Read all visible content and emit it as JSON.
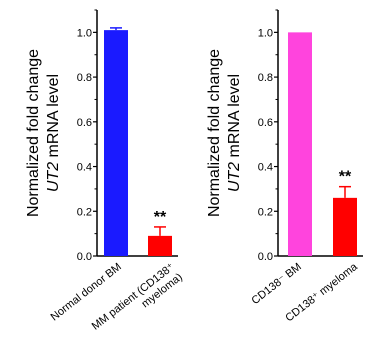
{
  "chart_data": [
    {
      "type": "bar",
      "categories": [
        "Normal donor BM",
        "MM patient (CD138⁺ myeloma)"
      ],
      "category_lines": [
        [
          "Normal donor BM"
        ],
        [
          "MM patient (CD138⁺",
          "myeloma)"
        ]
      ],
      "values": [
        1.01,
        0.09
      ],
      "errors": [
        0.01,
        0.04
      ],
      "colors": [
        "#1a1aff",
        "#ff0000"
      ],
      "significance": [
        "",
        "**"
      ],
      "ylabel_lines": [
        "Normalized fold change",
        "UT2 mRNA level"
      ],
      "ylim": [
        0,
        1.1
      ],
      "yticks": [
        "0.0",
        "0.2",
        "0.4",
        "0.6",
        "0.8",
        "1.0"
      ],
      "ytick_values": [
        0,
        0.2,
        0.4,
        0.6,
        0.8,
        1.0
      ],
      "grid": false
    },
    {
      "type": "bar",
      "categories": [
        "CD138⁻ BM",
        "CD138⁺ myeloma"
      ],
      "category_lines": [
        [
          "CD138⁻ BM"
        ],
        [
          "CD138⁺ myeloma"
        ]
      ],
      "values": [
        1.0,
        0.26
      ],
      "errors": [
        0.0,
        0.05
      ],
      "colors": [
        "#ff44dd",
        "#ff0000"
      ],
      "significance": [
        "",
        "**"
      ],
      "ylabel_lines": [
        "Normalized fold change",
        "UT2 mRNA level"
      ],
      "ylim": [
        0,
        1.1
      ],
      "yticks": [
        "0.0",
        "0.2",
        "0.4",
        "0.6",
        "0.8",
        "1.0"
      ],
      "ytick_values": [
        0,
        0.2,
        0.4,
        0.6,
        0.8,
        1.0
      ],
      "grid": false
    }
  ]
}
